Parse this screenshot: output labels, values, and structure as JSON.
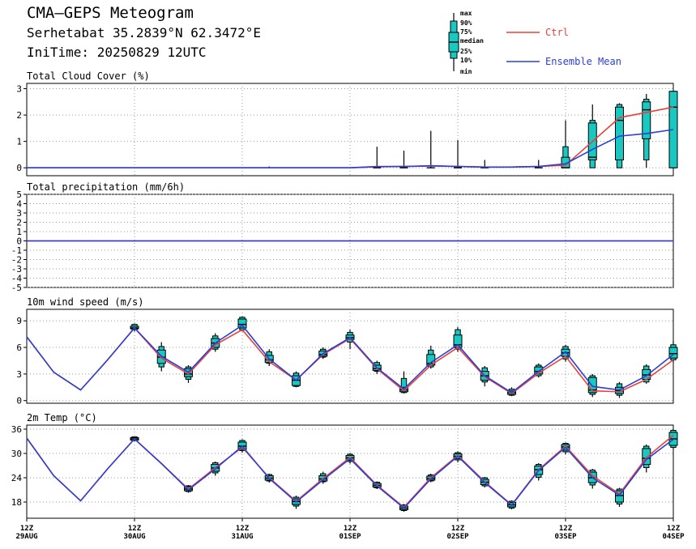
{
  "header": {
    "title": "CMA–GEPS Meteogram",
    "location": "Serhetabat 35.2839°N 62.3472°E",
    "init_time": "IniTime: 20250829 12UTC"
  },
  "legend": {
    "box_labels": [
      "max",
      "90%",
      "75%",
      "median",
      "25%",
      "10%",
      "min"
    ],
    "ctrl_label": "Ctrl",
    "mean_label": "Ensemble Mean",
    "colors": {
      "ctrl": "#e8413c",
      "mean": "#2a3fd6",
      "box": "#19c8c0"
    }
  },
  "x_axis": {
    "ticks": [
      {
        "hour": 0,
        "top": "12Z",
        "bottom": "29AUG"
      },
      {
        "hour": 24,
        "top": "12Z",
        "bottom": "30AUG"
      },
      {
        "hour": 48,
        "top": "12Z",
        "bottom": "31AUG"
      },
      {
        "hour": 72,
        "top": "12Z",
        "bottom": "01SEP"
      },
      {
        "hour": 96,
        "top": "12Z",
        "bottom": "02SEP"
      },
      {
        "hour": 120,
        "top": "12Z",
        "bottom": "03SEP"
      },
      {
        "hour": 144,
        "top": "12Z",
        "bottom": "04SEP"
      }
    ]
  },
  "chart_data": [
    {
      "type": "line",
      "title": "Total Cloud Cover (%)",
      "ylim": [
        -0.3,
        3.2
      ],
      "yticks": [
        0,
        1,
        2,
        3
      ],
      "x": [
        0,
        6,
        12,
        18,
        24,
        30,
        36,
        42,
        48,
        54,
        60,
        66,
        72,
        78,
        84,
        90,
        96,
        102,
        108,
        114,
        120,
        126,
        132,
        138,
        144
      ],
      "series": [
        {
          "name": "Ctrl",
          "values": [
            0,
            0,
            0,
            0,
            0,
            0,
            0,
            0,
            0,
            0,
            0,
            0,
            0,
            0.05,
            0.05,
            0.08,
            0.05,
            0.03,
            0.03,
            0.05,
            0.1,
            1.0,
            1.9,
            2.1,
            2.3
          ]
        },
        {
          "name": "Ensemble Mean",
          "values": [
            0,
            0,
            0,
            0,
            0,
            0,
            0,
            0,
            0,
            0,
            0,
            0,
            0,
            0.04,
            0.05,
            0.07,
            0.05,
            0.03,
            0.03,
            0.05,
            0.15,
            0.7,
            1.2,
            1.3,
            1.45
          ]
        }
      ],
      "boxes": [
        {
          "x": 54,
          "min": 0,
          "p10": 0,
          "p25": 0,
          "median": 0,
          "p75": 0,
          "p90": 0,
          "max": 0.05
        },
        {
          "x": 78,
          "min": 0,
          "p10": 0,
          "p25": 0,
          "median": 0,
          "p75": 0,
          "p90": 0,
          "max": 0.8
        },
        {
          "x": 84,
          "min": 0,
          "p10": 0,
          "p25": 0,
          "median": 0,
          "p75": 0,
          "p90": 0,
          "max": 0.65
        },
        {
          "x": 90,
          "min": 0,
          "p10": 0,
          "p25": 0,
          "median": 0,
          "p75": 0,
          "p90": 0,
          "max": 1.4
        },
        {
          "x": 96,
          "min": 0,
          "p10": 0,
          "p25": 0,
          "median": 0,
          "p75": 0,
          "p90": 0,
          "max": 1.05
        },
        {
          "x": 102,
          "min": 0,
          "p10": 0,
          "p25": 0,
          "median": 0,
          "p75": 0,
          "p90": 0,
          "max": 0.3
        },
        {
          "x": 114,
          "min": 0,
          "p10": 0,
          "p25": 0,
          "median": 0,
          "p75": 0,
          "p90": 0,
          "max": 0.3
        },
        {
          "x": 120,
          "min": 0,
          "p10": 0,
          "p25": 0,
          "median": 0,
          "p75": 0.4,
          "p90": 0.8,
          "max": 1.8
        },
        {
          "x": 126,
          "min": 0,
          "p10": 0,
          "p25": 0.3,
          "median": 0.4,
          "p75": 1.7,
          "p90": 1.8,
          "max": 2.4
        },
        {
          "x": 132,
          "min": 0,
          "p10": 0,
          "p25": 0.3,
          "median": 1.8,
          "p75": 2.3,
          "p90": 2.4,
          "max": 2.45
        },
        {
          "x": 138,
          "min": 0,
          "p10": 0.3,
          "p25": 1.1,
          "median": 2.2,
          "p75": 2.5,
          "p90": 2.6,
          "max": 2.8
        },
        {
          "x": 144,
          "min": 0,
          "p10": 0,
          "p25": 0,
          "median": 2.3,
          "p75": 2.9,
          "p90": 2.9,
          "max": 2.9
        }
      ]
    },
    {
      "type": "line",
      "title": "Total precipitation (mm/6h)",
      "ylim": [
        -5,
        5
      ],
      "yticks": [
        -5,
        -4,
        -3,
        -2,
        -1,
        0,
        1,
        2,
        3,
        4,
        5
      ],
      "x": [
        0,
        6,
        12,
        18,
        24,
        30,
        36,
        42,
        48,
        54,
        60,
        66,
        72,
        78,
        84,
        90,
        96,
        102,
        108,
        114,
        120,
        126,
        132,
        138,
        144
      ],
      "series": [
        {
          "name": "Ctrl",
          "values": [
            0,
            0,
            0,
            0,
            0,
            0,
            0,
            0,
            0,
            0,
            0,
            0,
            0,
            0,
            0,
            0,
            0,
            0,
            0,
            0,
            0,
            0,
            0,
            0,
            0
          ]
        },
        {
          "name": "Ensemble Mean",
          "values": [
            0,
            0,
            0,
            0,
            0,
            0,
            0,
            0,
            0,
            0,
            0,
            0,
            0,
            0,
            0,
            0,
            0,
            0,
            0,
            0,
            0,
            0,
            0,
            0,
            0
          ]
        }
      ],
      "boxes": []
    },
    {
      "type": "line",
      "title": "10m wind speed (m/s)",
      "ylim": [
        -0.3,
        10.3
      ],
      "yticks": [
        0,
        3,
        6,
        9
      ],
      "x": [
        0,
        6,
        12,
        18,
        24,
        30,
        36,
        42,
        48,
        54,
        60,
        66,
        72,
        78,
        84,
        90,
        96,
        102,
        108,
        114,
        120,
        126,
        132,
        138,
        144
      ],
      "series": [
        {
          "name": "Ctrl",
          "values": [
            7.2,
            3.2,
            1.2,
            4.6,
            8.2,
            4.8,
            3.0,
            6.3,
            8.0,
            4.4,
            2.3,
            5.2,
            7.0,
            3.6,
            1.1,
            4.0,
            6.0,
            2.7,
            0.8,
            3.1,
            5.0,
            1.1,
            1.0,
            2.4,
            4.6
          ]
        },
        {
          "name": "Ensemble Mean",
          "values": [
            7.2,
            3.2,
            1.2,
            4.6,
            8.2,
            5.0,
            3.2,
            6.5,
            8.5,
            4.7,
            2.3,
            5.3,
            7.1,
            3.7,
            1.3,
            4.3,
            6.3,
            2.8,
            0.9,
            3.3,
            5.5,
            1.6,
            1.2,
            2.8,
            5.2
          ]
        }
      ],
      "boxes": [
        {
          "x": 24,
          "min": 7.8,
          "p10": 8.0,
          "p25": 8.1,
          "median": 8.2,
          "p75": 8.4,
          "p90": 8.6,
          "max": 8.7
        },
        {
          "x": 30,
          "min": 3.3,
          "p10": 3.8,
          "p25": 4.2,
          "median": 4.9,
          "p75": 5.7,
          "p90": 6.1,
          "max": 6.6
        },
        {
          "x": 36,
          "min": 2.0,
          "p10": 2.4,
          "p25": 2.7,
          "median": 3.0,
          "p75": 3.6,
          "p90": 3.8,
          "max": 4.0
        },
        {
          "x": 42,
          "min": 5.5,
          "p10": 5.8,
          "p25": 6.0,
          "median": 6.5,
          "p75": 7.0,
          "p90": 7.3,
          "max": 7.6
        },
        {
          "x": 48,
          "min": 7.8,
          "p10": 8.0,
          "p25": 8.2,
          "median": 8.6,
          "p75": 9.2,
          "p90": 9.4,
          "max": 9.5
        },
        {
          "x": 54,
          "min": 3.9,
          "p10": 4.2,
          "p25": 4.3,
          "median": 4.6,
          "p75": 5.1,
          "p90": 5.5,
          "max": 5.8
        },
        {
          "x": 60,
          "min": 1.5,
          "p10": 1.6,
          "p25": 1.7,
          "median": 2.3,
          "p75": 2.8,
          "p90": 3.1,
          "max": 3.3
        },
        {
          "x": 66,
          "min": 4.7,
          "p10": 4.9,
          "p25": 5.0,
          "median": 5.2,
          "p75": 5.6,
          "p90": 5.8,
          "max": 6.0
        },
        {
          "x": 72,
          "min": 5.8,
          "p10": 6.6,
          "p25": 6.9,
          "median": 7.1,
          "p75": 7.4,
          "p90": 7.7,
          "max": 8.0
        },
        {
          "x": 78,
          "min": 3.0,
          "p10": 3.3,
          "p25": 3.4,
          "median": 3.6,
          "p75": 4.0,
          "p90": 4.3,
          "max": 4.5
        },
        {
          "x": 84,
          "min": 0.8,
          "p10": 0.9,
          "p25": 1.0,
          "median": 1.2,
          "p75": 1.5,
          "p90": 2.5,
          "max": 3.3
        },
        {
          "x": 90,
          "min": 3.6,
          "p10": 3.8,
          "p25": 4.0,
          "median": 4.2,
          "p75": 5.2,
          "p90": 5.7,
          "max": 6.2
        },
        {
          "x": 96,
          "min": 5.5,
          "p10": 5.8,
          "p25": 6.0,
          "median": 6.3,
          "p75": 7.4,
          "p90": 8.0,
          "max": 8.3
        },
        {
          "x": 102,
          "min": 1.6,
          "p10": 2.1,
          "p25": 2.3,
          "median": 2.8,
          "p75": 3.3,
          "p90": 3.7,
          "max": 3.9
        },
        {
          "x": 108,
          "min": 0.5,
          "p10": 0.6,
          "p25": 0.7,
          "median": 0.9,
          "p75": 1.1,
          "p90": 1.3,
          "max": 1.5
        },
        {
          "x": 114,
          "min": 2.6,
          "p10": 2.8,
          "p25": 3.0,
          "median": 3.3,
          "p75": 3.8,
          "p90": 4.0,
          "max": 4.2
        },
        {
          "x": 120,
          "min": 4.4,
          "p10": 4.7,
          "p25": 5.0,
          "median": 5.4,
          "p75": 5.8,
          "p90": 6.1,
          "max": 6.3
        },
        {
          "x": 126,
          "min": 0.4,
          "p10": 0.7,
          "p25": 0.9,
          "median": 1.2,
          "p75": 2.6,
          "p90": 2.8,
          "max": 3.0
        },
        {
          "x": 132,
          "min": 0.3,
          "p10": 0.6,
          "p25": 0.8,
          "median": 1.1,
          "p75": 1.5,
          "p90": 1.9,
          "max": 2.1
        },
        {
          "x": 138,
          "min": 1.9,
          "p10": 2.1,
          "p25": 2.4,
          "median": 2.9,
          "p75": 3.5,
          "p90": 3.9,
          "max": 4.1
        },
        {
          "x": 144,
          "min": 4.3,
          "p10": 4.6,
          "p25": 4.8,
          "median": 5.3,
          "p75": 6.0,
          "p90": 6.3,
          "max": 6.7
        }
      ]
    },
    {
      "type": "line",
      "title": "2m Temp (°C)",
      "ylim": [
        14,
        37
      ],
      "yticks": [
        18,
        24,
        30,
        36
      ],
      "x": [
        0,
        6,
        12,
        18,
        24,
        30,
        36,
        42,
        48,
        54,
        60,
        66,
        72,
        78,
        84,
        90,
        96,
        102,
        108,
        114,
        120,
        126,
        132,
        138,
        144
      ],
      "series": [
        {
          "name": "Ctrl",
          "values": [
            33.8,
            24.5,
            18.3,
            26.2,
            33.6,
            27.5,
            21.2,
            26.5,
            31.5,
            24.0,
            18.2,
            23.8,
            29.0,
            22.2,
            16.7,
            24.0,
            29.5,
            23.0,
            17.3,
            26.0,
            31.8,
            24.5,
            20.0,
            29.0,
            34.5
          ]
        },
        {
          "name": "Ensemble Mean",
          "values": [
            33.8,
            24.5,
            18.3,
            26.2,
            33.6,
            27.5,
            21.0,
            26.2,
            31.8,
            23.8,
            18.0,
            23.5,
            28.7,
            22.0,
            16.5,
            23.7,
            29.3,
            22.8,
            17.2,
            25.8,
            31.5,
            24.0,
            19.7,
            28.5,
            33.5
          ]
        }
      ],
      "boxes": [
        {
          "x": 24,
          "min": 33.0,
          "p10": 33.2,
          "p25": 33.3,
          "median": 33.6,
          "p75": 33.9,
          "p90": 34.1,
          "max": 34.2
        },
        {
          "x": 36,
          "min": 20.3,
          "p10": 20.6,
          "p25": 20.8,
          "median": 21.2,
          "p75": 21.8,
          "p90": 22.0,
          "max": 22.2
        },
        {
          "x": 42,
          "min": 24.5,
          "p10": 25.2,
          "p25": 25.6,
          "median": 26.4,
          "p75": 27.3,
          "p90": 27.7,
          "max": 28.0
        },
        {
          "x": 48,
          "min": 30.2,
          "p10": 30.7,
          "p25": 31.0,
          "median": 31.8,
          "p75": 32.8,
          "p90": 33.2,
          "max": 33.5
        },
        {
          "x": 54,
          "min": 22.8,
          "p10": 23.2,
          "p25": 23.4,
          "median": 23.9,
          "p75": 24.5,
          "p90": 24.8,
          "max": 25.0
        },
        {
          "x": 60,
          "min": 16.3,
          "p10": 17.0,
          "p25": 17.4,
          "median": 18.1,
          "p75": 18.8,
          "p90": 19.2,
          "max": 19.6
        },
        {
          "x": 66,
          "min": 22.5,
          "p10": 23.0,
          "p25": 23.2,
          "median": 23.7,
          "p75": 24.5,
          "p90": 25.0,
          "max": 25.5
        },
        {
          "x": 72,
          "min": 27.5,
          "p10": 28.0,
          "p25": 28.3,
          "median": 28.9,
          "p75": 29.5,
          "p90": 29.8,
          "max": 30.1
        },
        {
          "x": 78,
          "min": 21.2,
          "p10": 21.5,
          "p25": 21.7,
          "median": 22.1,
          "p75": 22.6,
          "p90": 22.9,
          "max": 23.1
        },
        {
          "x": 84,
          "min": 15.6,
          "p10": 15.9,
          "p25": 16.1,
          "median": 16.5,
          "p75": 17.0,
          "p90": 17.3,
          "max": 17.5
        },
        {
          "x": 90,
          "min": 22.9,
          "p10": 23.2,
          "p25": 23.4,
          "median": 23.8,
          "p75": 24.4,
          "p90": 24.7,
          "max": 25.0
        },
        {
          "x": 96,
          "min": 27.8,
          "p10": 28.4,
          "p25": 28.7,
          "median": 29.3,
          "p75": 29.9,
          "p90": 30.2,
          "max": 30.5
        },
        {
          "x": 102,
          "min": 21.6,
          "p10": 22.0,
          "p25": 22.3,
          "median": 22.9,
          "p75": 23.6,
          "p90": 24.0,
          "max": 24.2
        },
        {
          "x": 108,
          "min": 16.2,
          "p10": 16.5,
          "p25": 16.8,
          "median": 17.3,
          "p75": 17.9,
          "p90": 18.2,
          "max": 18.4
        },
        {
          "x": 114,
          "min": 23.3,
          "p10": 24.1,
          "p25": 24.8,
          "median": 26.0,
          "p75": 26.9,
          "p90": 27.3,
          "max": 27.6
        },
        {
          "x": 120,
          "min": 29.8,
          "p10": 30.4,
          "p25": 30.8,
          "median": 31.6,
          "p75": 32.2,
          "p90": 32.5,
          "max": 32.7
        },
        {
          "x": 126,
          "min": 21.3,
          "p10": 22.2,
          "p25": 22.8,
          "median": 24.0,
          "p75": 25.4,
          "p90": 25.9,
          "max": 26.2
        },
        {
          "x": 132,
          "min": 16.8,
          "p10": 17.5,
          "p25": 18.0,
          "median": 19.6,
          "p75": 20.8,
          "p90": 21.2,
          "max": 21.5
        },
        {
          "x": 138,
          "min": 25.3,
          "p10": 26.5,
          "p25": 27.3,
          "median": 28.8,
          "p75": 31.2,
          "p90": 31.8,
          "max": 32.2
        },
        {
          "x": 144,
          "min": 31.0,
          "p10": 31.5,
          "p25": 32.0,
          "median": 33.6,
          "p75": 35.2,
          "p90": 35.7,
          "max": 36.0
        }
      ]
    }
  ]
}
